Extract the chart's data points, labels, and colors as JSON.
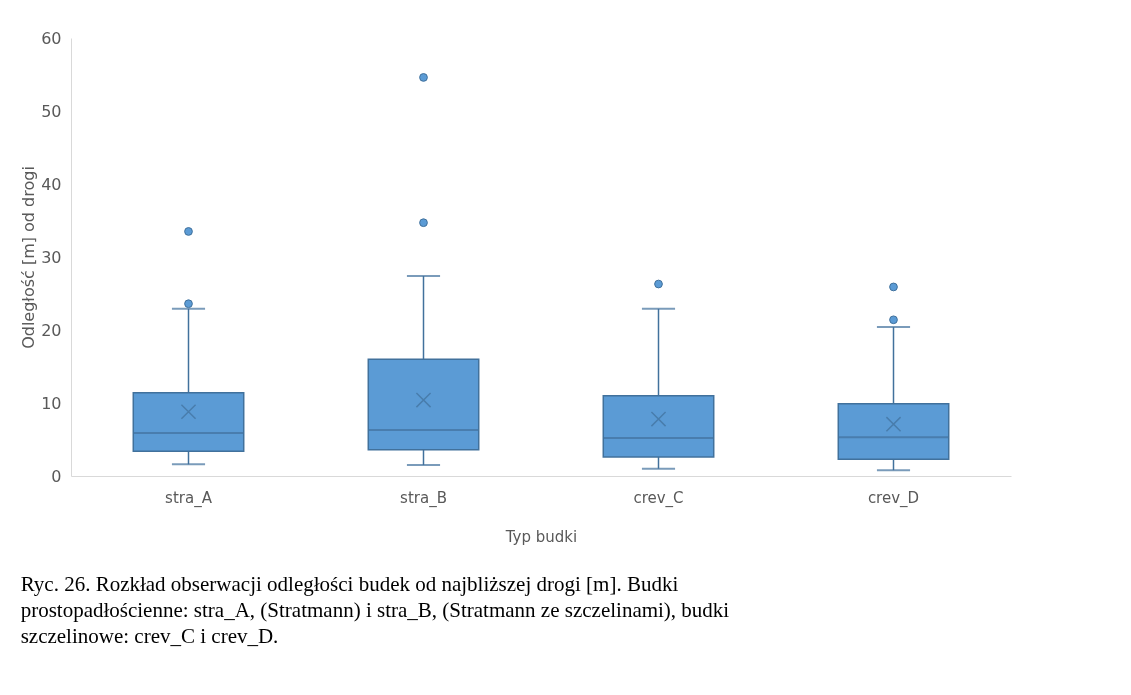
{
  "chart_data": {
    "type": "box",
    "xlabel": "Typ budki",
    "ylabel": "Odległość [m] od drogi",
    "categories": [
      "stra_A",
      "stra_B",
      "crev_C",
      "crev_D"
    ],
    "boxes": [
      {
        "low": 1.6,
        "q1": 3.4,
        "median": 5.9,
        "q3": 11.4,
        "high": 22.9,
        "mean": 8.8,
        "outliers": [
          33.5,
          23.6
        ]
      },
      {
        "low": 1.5,
        "q1": 3.6,
        "median": 6.3,
        "q3": 16.0,
        "high": 27.4,
        "mean": 10.4,
        "outliers": [
          54.6,
          34.7
        ]
      },
      {
        "low": 1.0,
        "q1": 2.6,
        "median": 5.2,
        "q3": 11.0,
        "high": 22.9,
        "mean": 7.8,
        "outliers": [
          26.3
        ]
      },
      {
        "low": 0.8,
        "q1": 2.3,
        "median": 5.3,
        "q3": 9.9,
        "high": 20.4,
        "mean": 7.1,
        "outliers": [
          25.9,
          21.4
        ]
      }
    ],
    "color": "#5b9bd5",
    "ylim": [
      0,
      60
    ],
    "yticks": [
      0,
      10,
      20,
      30,
      40,
      50,
      60
    ],
    "grid": false,
    "annotations": [
      "Ryc. 26. Rozkład obserwacji odległości budek od najbliższej drogi [m]. Budki prostopadłościenne: stra_A, (Stratmann) i stra_B, (Stratmann ze szczelinami), budki szczelinowe: crev_C i crev_D."
    ]
  }
}
